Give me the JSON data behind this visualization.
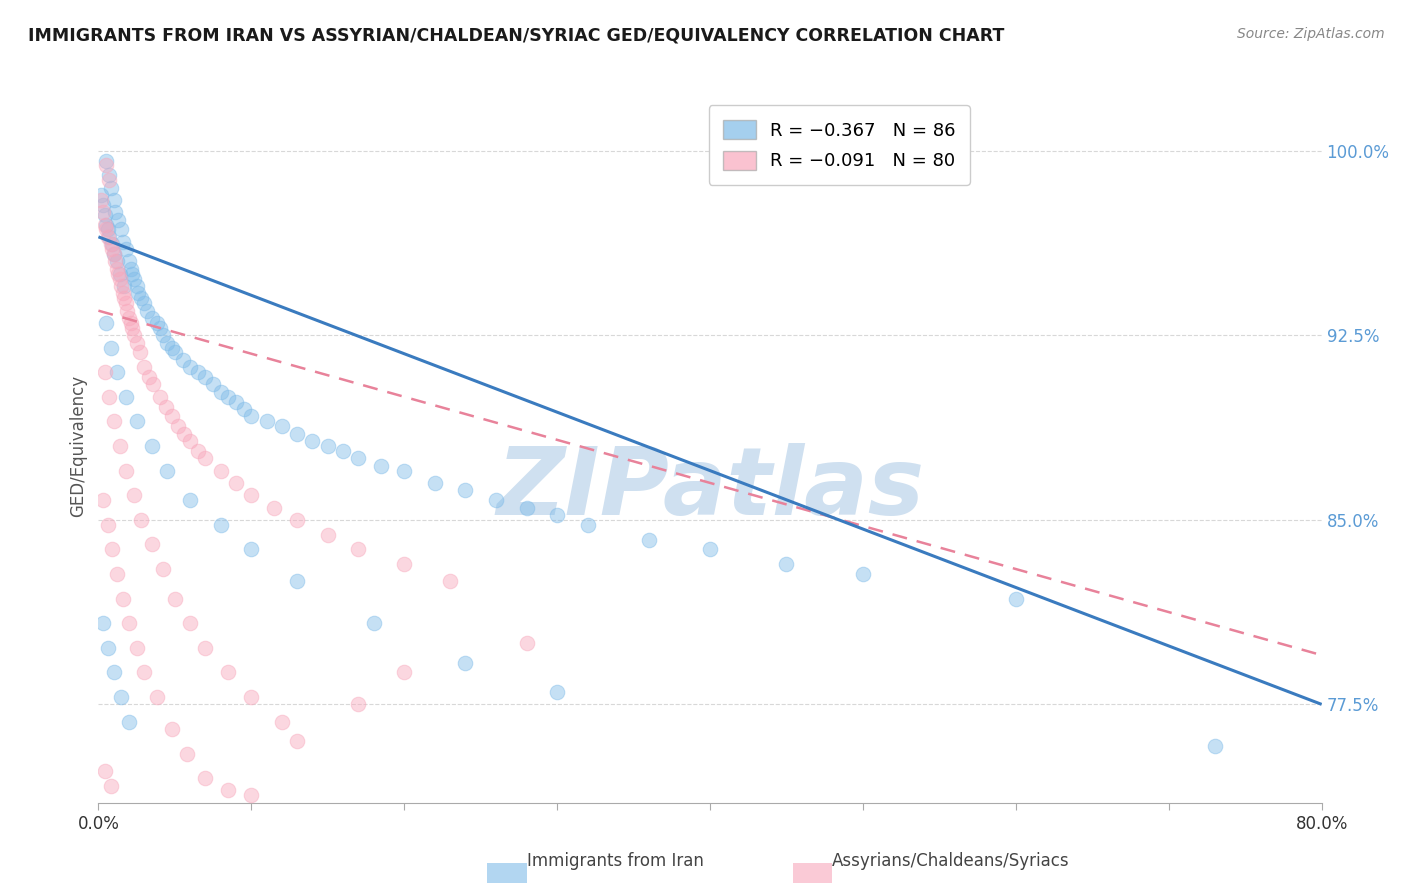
{
  "title": "IMMIGRANTS FROM IRAN VS ASSYRIAN/CHALDEAN/SYRIAC GED/EQUIVALENCY CORRELATION CHART",
  "source": "Source: ZipAtlas.com",
  "ylabel": "GED/Equivalency",
  "ytick_labels": [
    "100.0%",
    "92.5%",
    "85.0%",
    "77.5%"
  ],
  "ytick_values": [
    1.0,
    0.925,
    0.85,
    0.775
  ],
  "xmin": 0.0,
  "xmax": 0.8,
  "ymin": 0.735,
  "ymax": 1.025,
  "legend_r1": "R = −0.367",
  "legend_n1": "N = 86",
  "legend_r2": "R = −0.091",
  "legend_n2": "N = 80",
  "color_blue": "#7fbbe8",
  "color_pink": "#f8a8bc",
  "color_blue_line": "#3a7bbf",
  "color_pink_line": "#e8829a",
  "blue_line_x0": 0.0,
  "blue_line_y0": 0.965,
  "blue_line_x1": 0.8,
  "blue_line_y1": 0.775,
  "pink_line_x0": 0.0,
  "pink_line_y0": 0.935,
  "pink_line_x1": 0.8,
  "pink_line_y1": 0.795,
  "blue_scatter_x": [
    0.002,
    0.003,
    0.004,
    0.005,
    0.005,
    0.006,
    0.007,
    0.007,
    0.008,
    0.009,
    0.01,
    0.01,
    0.011,
    0.012,
    0.013,
    0.014,
    0.015,
    0.016,
    0.017,
    0.018,
    0.02,
    0.021,
    0.022,
    0.023,
    0.025,
    0.026,
    0.028,
    0.03,
    0.032,
    0.035,
    0.038,
    0.04,
    0.042,
    0.045,
    0.048,
    0.05,
    0.055,
    0.06,
    0.065,
    0.07,
    0.075,
    0.08,
    0.085,
    0.09,
    0.095,
    0.1,
    0.11,
    0.12,
    0.13,
    0.14,
    0.15,
    0.16,
    0.17,
    0.185,
    0.2,
    0.22,
    0.24,
    0.26,
    0.28,
    0.3,
    0.32,
    0.36,
    0.4,
    0.45,
    0.5,
    0.6,
    0.005,
    0.008,
    0.012,
    0.018,
    0.025,
    0.035,
    0.045,
    0.06,
    0.08,
    0.1,
    0.13,
    0.18,
    0.24,
    0.3,
    0.003,
    0.006,
    0.01,
    0.015,
    0.02,
    0.73
  ],
  "blue_scatter_y": [
    0.982,
    0.978,
    0.974,
    0.97,
    0.996,
    0.968,
    0.99,
    0.965,
    0.985,
    0.962,
    0.98,
    0.958,
    0.975,
    0.955,
    0.972,
    0.95,
    0.968,
    0.963,
    0.945,
    0.96,
    0.955,
    0.952,
    0.95,
    0.948,
    0.945,
    0.942,
    0.94,
    0.938,
    0.935,
    0.932,
    0.93,
    0.928,
    0.925,
    0.922,
    0.92,
    0.918,
    0.915,
    0.912,
    0.91,
    0.908,
    0.905,
    0.902,
    0.9,
    0.898,
    0.895,
    0.892,
    0.89,
    0.888,
    0.885,
    0.882,
    0.88,
    0.878,
    0.875,
    0.872,
    0.87,
    0.865,
    0.862,
    0.858,
    0.855,
    0.852,
    0.848,
    0.842,
    0.838,
    0.832,
    0.828,
    0.818,
    0.93,
    0.92,
    0.91,
    0.9,
    0.89,
    0.88,
    0.87,
    0.858,
    0.848,
    0.838,
    0.825,
    0.808,
    0.792,
    0.78,
    0.808,
    0.798,
    0.788,
    0.778,
    0.768,
    0.758
  ],
  "pink_scatter_x": [
    0.002,
    0.003,
    0.004,
    0.005,
    0.005,
    0.006,
    0.007,
    0.008,
    0.009,
    0.01,
    0.011,
    0.012,
    0.013,
    0.014,
    0.015,
    0.016,
    0.017,
    0.018,
    0.019,
    0.02,
    0.021,
    0.022,
    0.023,
    0.025,
    0.027,
    0.03,
    0.033,
    0.036,
    0.04,
    0.044,
    0.048,
    0.052,
    0.056,
    0.06,
    0.065,
    0.07,
    0.08,
    0.09,
    0.1,
    0.115,
    0.13,
    0.15,
    0.17,
    0.2,
    0.23,
    0.004,
    0.007,
    0.01,
    0.014,
    0.018,
    0.023,
    0.028,
    0.035,
    0.042,
    0.05,
    0.06,
    0.07,
    0.085,
    0.1,
    0.12,
    0.003,
    0.006,
    0.009,
    0.012,
    0.016,
    0.02,
    0.025,
    0.03,
    0.038,
    0.048,
    0.058,
    0.07,
    0.085,
    0.1,
    0.13,
    0.17,
    0.2,
    0.28,
    0.004,
    0.008
  ],
  "pink_scatter_y": [
    0.98,
    0.975,
    0.97,
    0.968,
    0.994,
    0.965,
    0.988,
    0.962,
    0.96,
    0.958,
    0.955,
    0.952,
    0.95,
    0.948,
    0.945,
    0.942,
    0.94,
    0.938,
    0.935,
    0.932,
    0.93,
    0.928,
    0.925,
    0.922,
    0.918,
    0.912,
    0.908,
    0.905,
    0.9,
    0.896,
    0.892,
    0.888,
    0.885,
    0.882,
    0.878,
    0.875,
    0.87,
    0.865,
    0.86,
    0.855,
    0.85,
    0.844,
    0.838,
    0.832,
    0.825,
    0.91,
    0.9,
    0.89,
    0.88,
    0.87,
    0.86,
    0.85,
    0.84,
    0.83,
    0.818,
    0.808,
    0.798,
    0.788,
    0.778,
    0.768,
    0.858,
    0.848,
    0.838,
    0.828,
    0.818,
    0.808,
    0.798,
    0.788,
    0.778,
    0.765,
    0.755,
    0.745,
    0.74,
    0.738,
    0.76,
    0.775,
    0.788,
    0.8,
    0.748,
    0.742
  ],
  "watermark_text": "ZIPatlas",
  "watermark_color": "#cfe0f0",
  "grid_color": "#d8d8d8",
  "background_color": "#ffffff",
  "legend_label1": "Immigrants from Iran",
  "legend_label2": "Assyrians/Chaldeans/Syriacs"
}
